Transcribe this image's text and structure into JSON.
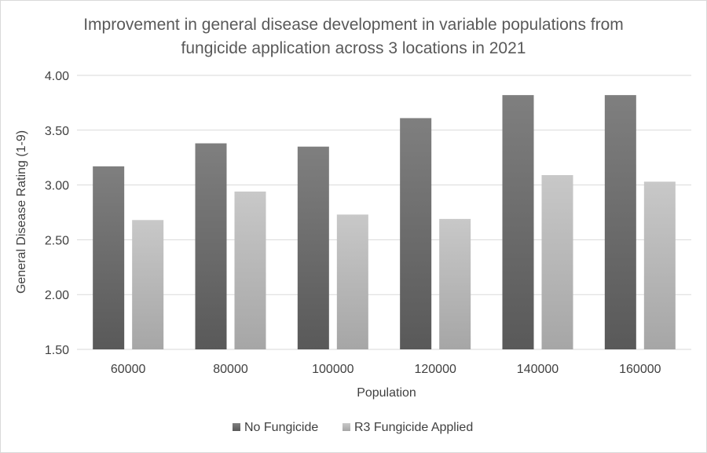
{
  "chart_data": {
    "type": "bar",
    "title": "Improvement in general disease development in variable populations from fungicide application across 3 locations in 2021",
    "title_lines": [
      "Improvement in general disease development in variable populations from",
      "fungicide application across 3 locations in 2021"
    ],
    "xlabel": "Population",
    "ylabel": "General Disease Rating (1-9)",
    "categories": [
      "60000",
      "80000",
      "100000",
      "120000",
      "140000",
      "160000"
    ],
    "series": [
      {
        "name": "No Fungicide",
        "color": "#595959",
        "color_light": "#7f7f7f",
        "values": [
          3.17,
          3.38,
          3.35,
          3.61,
          3.82,
          3.82
        ]
      },
      {
        "name": "R3 Fungicide Applied",
        "color": "#a6a6a6",
        "color_light": "#c8c8c8",
        "values": [
          2.68,
          2.94,
          2.73,
          2.69,
          3.09,
          3.03
        ]
      }
    ],
    "ylim": [
      1.5,
      4.0
    ],
    "yticks": [
      "1.50",
      "2.00",
      "2.50",
      "3.00",
      "3.50",
      "4.00"
    ],
    "grid": true,
    "legend_position": "bottom"
  }
}
